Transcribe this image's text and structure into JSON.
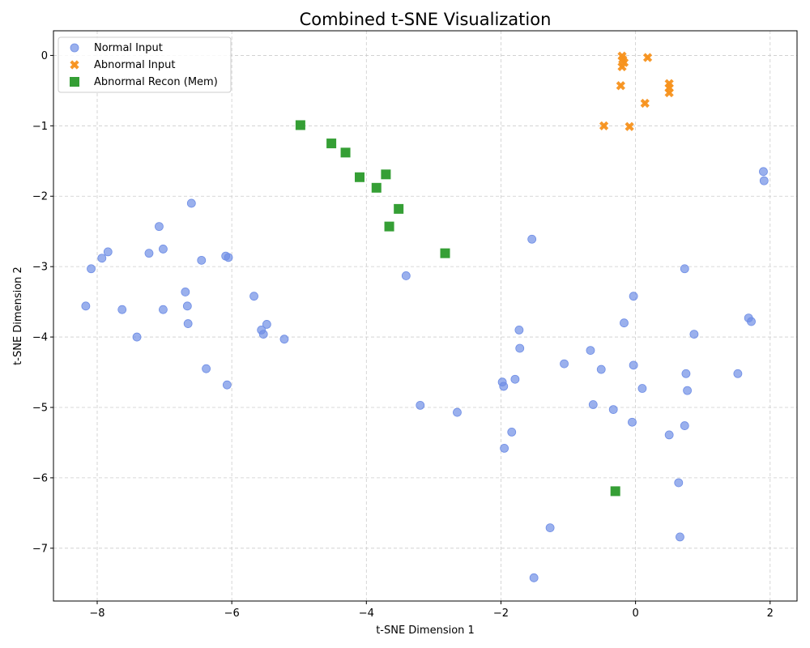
{
  "chart_data": {
    "type": "scatter",
    "title": "Combined t-SNE Visualization",
    "xlabel": "t-SNE Dimension 1",
    "ylabel": "t-SNE Dimension 2",
    "xlim": [
      -8.65,
      2.4
    ],
    "ylim": [
      -7.75,
      0.35
    ],
    "xticks": [
      -8,
      -6,
      -4,
      -2,
      0,
      2
    ],
    "yticks": [
      0,
      -1,
      -2,
      -3,
      -4,
      -5,
      -6,
      -7
    ],
    "grid": true,
    "legend_position": "top-left",
    "series": [
      {
        "name": "Normal Input",
        "marker": "circle",
        "color": "#6f8ee6",
        "points": [
          [
            -6.6,
            -2.1
          ],
          [
            -7.08,
            -2.43
          ],
          [
            -7.23,
            -2.81
          ],
          [
            -7.02,
            -2.75
          ],
          [
            -7.84,
            -2.79
          ],
          [
            -7.93,
            -2.88
          ],
          [
            -8.09,
            -3.03
          ],
          [
            -6.45,
            -2.91
          ],
          [
            -6.09,
            -2.85
          ],
          [
            -6.05,
            -2.87
          ],
          [
            -6.69,
            -3.36
          ],
          [
            -6.66,
            -3.56
          ],
          [
            -6.65,
            -3.81
          ],
          [
            -7.02,
            -3.61
          ],
          [
            -7.63,
            -3.61
          ],
          [
            -8.17,
            -3.56
          ],
          [
            -7.41,
            -4.0
          ],
          [
            -6.38,
            -4.45
          ],
          [
            -6.07,
            -4.68
          ],
          [
            -5.67,
            -3.42
          ],
          [
            -5.48,
            -3.82
          ],
          [
            -5.56,
            -3.9
          ],
          [
            -5.53,
            -3.96
          ],
          [
            -5.22,
            -4.03
          ],
          [
            -3.41,
            -3.13
          ],
          [
            -1.54,
            -2.61
          ],
          [
            -1.73,
            -3.9
          ],
          [
            -1.72,
            -4.16
          ],
          [
            -1.06,
            -4.38
          ],
          [
            -1.98,
            -4.64
          ],
          [
            -1.96,
            -4.7
          ],
          [
            -1.79,
            -4.6
          ],
          [
            -3.2,
            -4.97
          ],
          [
            -2.65,
            -5.07
          ],
          [
            -1.84,
            -5.35
          ],
          [
            -1.95,
            -5.58
          ],
          [
            -0.67,
            -4.19
          ],
          [
            -0.51,
            -4.46
          ],
          [
            -0.63,
            -4.96
          ],
          [
            -0.33,
            -5.03
          ],
          [
            -0.05,
            -5.21
          ],
          [
            -0.17,
            -3.8
          ],
          [
            -0.03,
            -3.42
          ],
          [
            -0.03,
            -4.4
          ],
          [
            0.1,
            -4.73
          ],
          [
            0.73,
            -3.03
          ],
          [
            0.75,
            -4.52
          ],
          [
            0.77,
            -4.76
          ],
          [
            0.87,
            -3.96
          ],
          [
            0.73,
            -5.26
          ],
          [
            0.5,
            -5.39
          ],
          [
            0.64,
            -6.07
          ],
          [
            0.66,
            -6.84
          ],
          [
            -1.27,
            -6.71
          ],
          [
            -1.51,
            -7.42
          ],
          [
            1.52,
            -4.52
          ],
          [
            1.68,
            -3.73
          ],
          [
            1.72,
            -3.78
          ],
          [
            1.9,
            -1.65
          ],
          [
            1.91,
            -1.78
          ]
        ]
      },
      {
        "name": "Abnormal Input",
        "marker": "x",
        "color": "#f7921e",
        "points": [
          [
            -0.2,
            -0.01
          ],
          [
            -0.19,
            -0.06
          ],
          [
            -0.17,
            -0.1
          ],
          [
            -0.2,
            -0.16
          ],
          [
            0.18,
            -0.03
          ],
          [
            -0.22,
            -0.43
          ],
          [
            0.5,
            -0.4
          ],
          [
            0.5,
            -0.46
          ],
          [
            0.5,
            -0.53
          ],
          [
            0.14,
            -0.68
          ],
          [
            -0.47,
            -1.0
          ],
          [
            -0.09,
            -1.01
          ]
        ]
      },
      {
        "name": "Abnormal Recon (Mem)",
        "marker": "square",
        "color": "#2a9a2a",
        "points": [
          [
            -4.98,
            -0.99
          ],
          [
            -4.52,
            -1.25
          ],
          [
            -4.31,
            -1.38
          ],
          [
            -4.1,
            -1.73
          ],
          [
            -3.71,
            -1.69
          ],
          [
            -3.85,
            -1.88
          ],
          [
            -3.52,
            -2.18
          ],
          [
            -3.66,
            -2.43
          ],
          [
            -2.83,
            -2.81
          ],
          [
            -0.3,
            -6.19
          ]
        ]
      }
    ]
  }
}
